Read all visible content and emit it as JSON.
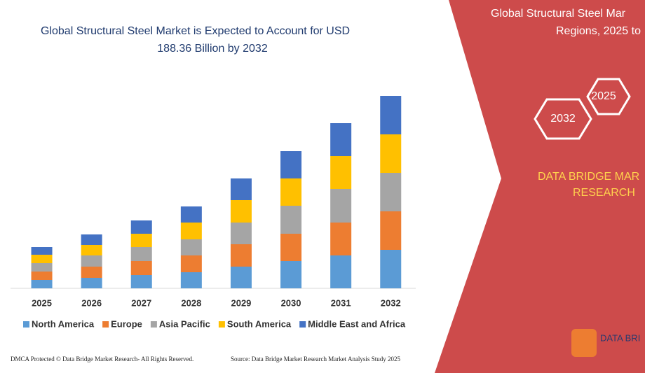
{
  "chart_data": {
    "type": "stacked-bar",
    "title": "Global Structural Steel Market is Expected to Account for USD",
    "subtitle": "188.36 Billion by 2032",
    "categories": [
      "2025",
      "2026",
      "2027",
      "2028",
      "2029",
      "2030",
      "2031",
      "2032"
    ],
    "series": [
      {
        "name": "North America",
        "color": "#5b9bd5",
        "values": [
          12,
          15,
          19,
          23,
          31,
          39,
          47,
          55
        ]
      },
      {
        "name": "Europe",
        "color": "#ed7d31",
        "values": [
          12,
          16,
          20,
          24,
          32,
          39,
          47,
          55
        ]
      },
      {
        "name": "Asia Pacific",
        "color": "#a5a5a5",
        "values": [
          12,
          16,
          20,
          23,
          31,
          40,
          48,
          55
        ]
      },
      {
        "name": "South America",
        "color": "#ffc000",
        "values": [
          12,
          15,
          19,
          24,
          32,
          39,
          47,
          55
        ]
      },
      {
        "name": "Middle East and Africa",
        "color": "#4472c4",
        "values": [
          11,
          15,
          19,
          23,
          31,
          39,
          47,
          55
        ]
      }
    ]
  },
  "panel": {
    "title_line1": "Global Structural Steel Mar",
    "title_line2": "Regions, 2025 to",
    "hex1": "2025",
    "hex2": "2032",
    "brand_line1": "DATA BRIDGE MAR",
    "brand_line2": "RESEARCH",
    "logo": "DATA BRI"
  },
  "footer": {
    "left": "DMCA Protected © Data Bridge Market Research-  All Rights Reserved.",
    "right": "Source: Data Bridge Market Research  Market Analysis Study 2025"
  }
}
